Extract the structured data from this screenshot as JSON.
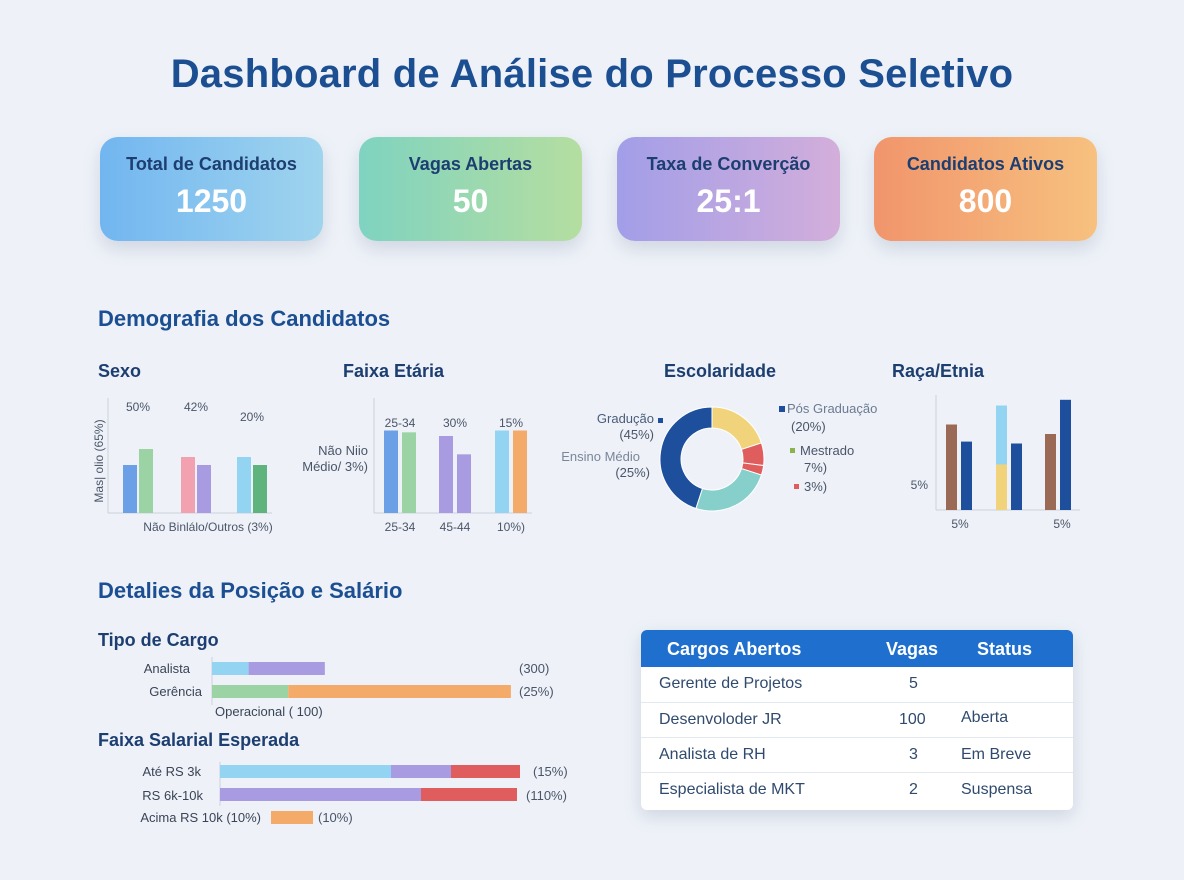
{
  "title": "Dashboard de Análise do Processo  Seletivo",
  "kpis": [
    {
      "label": "Total de Candidatos",
      "value": "1250"
    },
    {
      "label": "Vagas Abertas",
      "value": "50"
    },
    {
      "label": "Taxa de Converção",
      "value": "25:1"
    },
    {
      "label": "Candidatos Ativos",
      "value": "800"
    }
  ],
  "colors": {
    "blue": "#6b9fe6",
    "green": "#9bd3a5",
    "pink": "#f2a1b0",
    "purple": "#a99be2",
    "lightblue": "#93d4f2",
    "darkgreen": "#5fb37d",
    "orange": "#f4ab6a",
    "navy": "#1e4f9c",
    "yellow": "#f0d37a",
    "red": "#e05d5d",
    "teal": "#86cfcb",
    "brown": "#9b6a56"
  },
  "sections": {
    "demografia": "Demografia dos Candidatos",
    "detalhes": "Detalies da Posição e Salário"
  },
  "chart_data": [
    {
      "type": "bar",
      "title": "Sexo",
      "ylabel": "Mas| olio (65%)",
      "xlabel": "Não Binlálo/Outros (3%)",
      "group_labels": [
        "50%",
        "42%",
        "20%"
      ],
      "series": [
        {
          "values": [
            30,
            35,
            35
          ]
        },
        {
          "values": [
            40,
            30,
            30
          ]
        }
      ],
      "series_colors": [
        [
          "blue",
          "green"
        ],
        [
          "pink",
          "purple"
        ],
        [
          "lightblue",
          "darkgreen"
        ]
      ],
      "ylim": [
        0,
        60
      ]
    },
    {
      "type": "bar",
      "title": "Faixa Etária",
      "ylabel": "Não Niio Médio/ 3%)",
      "categories": [
        "25-34",
        "45-44",
        "10%)"
      ],
      "group_labels": [
        "25-34",
        "30%",
        "15%"
      ],
      "series": [
        {
          "values": [
            45,
            42,
            45
          ]
        },
        {
          "values": [
            44,
            32,
            45
          ]
        }
      ],
      "series_colors": [
        [
          "blue",
          "green"
        ],
        [
          "purple",
          "purple"
        ],
        [
          "lightblue",
          "orange"
        ]
      ],
      "ylim": [
        0,
        60
      ]
    },
    {
      "type": "pie",
      "title": "Escolaridade",
      "slices": [
        {
          "label": "Pós Graduação",
          "value": 20,
          "annot": "(20%)",
          "color": "yellow"
        },
        {
          "label": "Mestrado",
          "value": 7,
          "annot": "7%)",
          "color": "red"
        },
        {
          "label": "",
          "value": 3,
          "annot": "3%)",
          "color": "red"
        },
        {
          "label": "Ensino Médio",
          "value": 25,
          "annot": "(25%)",
          "color": "teal"
        },
        {
          "label": "Gradução",
          "value": 45,
          "annot": "(45%)",
          "color": "navy"
        }
      ]
    },
    {
      "type": "bar",
      "title": "Raça/Etnia",
      "ylabel": "5%",
      "tick_labels": [
        "5%",
        "5%"
      ],
      "values": [
        45,
        36,
        55,
        35,
        40,
        58
      ],
      "bar_colors": [
        "brown",
        "navy",
        "lightblue",
        "navy",
        "brown",
        "navy"
      ],
      "stack_low": {
        "index": 2,
        "value": 24,
        "color": "yellow"
      },
      "ylim": [
        0,
        60
      ]
    },
    {
      "type": "bar",
      "orientation": "horizontal",
      "title": "Tipo de Cargo",
      "categories": [
        "Analista",
        "Gerência"
      ],
      "annotations": [
        "(300)",
        "(25%)"
      ],
      "extra_label": "Operacional ( 100)",
      "segments": [
        [
          {
            "value": 12,
            "color": "lightblue"
          },
          {
            "value": 25,
            "color": "purple"
          }
        ],
        [
          {
            "value": 25,
            "color": "green"
          },
          {
            "value": 73,
            "color": "orange"
          }
        ]
      ],
      "xlim": [
        0,
        100
      ]
    },
    {
      "type": "bar",
      "orientation": "horizontal",
      "title": "Faixa Salarial Esperada",
      "categories": [
        "Até RS 3k",
        "RS 6k-10k",
        "Acima RS 10k (10%)"
      ],
      "annotations": [
        "(15%)",
        "(110%)",
        "(10%)"
      ],
      "segments": [
        [
          {
            "value": 57,
            "color": "lightblue"
          },
          {
            "value": 20,
            "color": "purple"
          },
          {
            "value": 23,
            "color": "red"
          }
        ],
        [
          {
            "value": 67,
            "color": "purple"
          },
          {
            "value": 32,
            "color": "red"
          }
        ],
        [
          {
            "value": 14,
            "color": "orange"
          }
        ]
      ],
      "xlim": [
        0,
        100
      ]
    },
    {
      "type": "table",
      "columns": [
        "Cargos Abertos",
        "Vagas",
        "Status"
      ],
      "rows": [
        [
          "Gerente de Projetos",
          "5",
          ""
        ],
        [
          "Desenvoloder JR",
          "100",
          "Aberta"
        ],
        [
          "Analista de RH",
          "3",
          "Em Breve"
        ],
        [
          "Especialista de MKT",
          "2",
          "Suspensa"
        ]
      ]
    }
  ]
}
